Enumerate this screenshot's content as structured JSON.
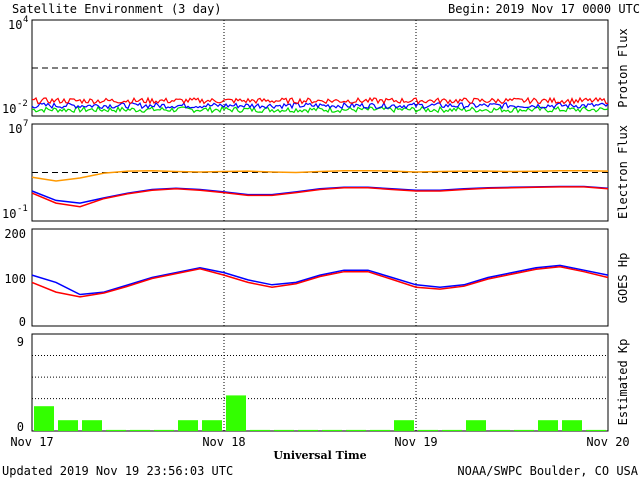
{
  "header": {
    "title": "Satellite Environment (3 day)",
    "begin_label": "Begin:",
    "begin_date": "2019 Nov 17 0000 UTC"
  },
  "footer": {
    "updated": "Updated 2019 Nov 19 23:56:03 UTC",
    "credit": "NOAA/SWPC Boulder, CO USA",
    "xlabel": "Universal Time"
  },
  "colors": {
    "red": "#ff0000",
    "blue": "#0000ff",
    "green": "#00dd00",
    "orange": "#ff9900",
    "kp_bar": "#33ff00"
  },
  "chart_data": [
    {
      "type": "line",
      "panel": "proton",
      "ylabel": "Proton Flux",
      "scale": "log",
      "ylim": [
        0.01,
        10000
      ],
      "ytick_labels": [
        {
          "base": "10",
          "exp": "4",
          "value": 10000
        },
        {
          "base": "10",
          "exp": "-2",
          "value": 0.01
        }
      ],
      "threshold": 10,
      "x_range_hours": [
        0,
        72
      ],
      "series": [
        {
          "color": "red",
          "level": 0.09
        },
        {
          "color": "blue",
          "level": 0.045
        },
        {
          "color": "green",
          "level": 0.025
        }
      ]
    },
    {
      "type": "line",
      "panel": "electron",
      "ylabel": "Electron Flux",
      "scale": "log",
      "ylim": [
        0.1,
        10000000
      ],
      "ytick_labels": [
        {
          "base": "10",
          "exp": "7",
          "value": 10000000
        },
        {
          "base": "10",
          "exp": "-1",
          "value": 0.1
        }
      ],
      "threshold": 1000,
      "x_hours": [
        0,
        3,
        6,
        9,
        12,
        15,
        18,
        21,
        24,
        27,
        30,
        33,
        36,
        39,
        42,
        45,
        48,
        51,
        54,
        57,
        60,
        63,
        66,
        69,
        72
      ],
      "series": [
        {
          "color": "orange",
          "values": [
            400,
            200,
            350,
            900,
            1300,
            1400,
            1200,
            1100,
            1200,
            1300,
            1100,
            1000,
            1200,
            1400,
            1400,
            1300,
            1100,
            1200,
            1300,
            1300,
            1200,
            1250,
            1400,
            1400,
            1300
          ]
        },
        {
          "color": "blue",
          "values": [
            30,
            5,
            3,
            8,
            20,
            40,
            50,
            40,
            25,
            15,
            15,
            25,
            45,
            60,
            60,
            45,
            35,
            35,
            45,
            55,
            60,
            65,
            70,
            70,
            50
          ]
        },
        {
          "color": "red",
          "values": [
            20,
            3,
            1.5,
            7,
            18,
            35,
            45,
            35,
            22,
            13,
            13,
            22,
            40,
            55,
            55,
            40,
            30,
            30,
            40,
            50,
            55,
            60,
            65,
            65,
            45
          ]
        }
      ]
    },
    {
      "type": "line",
      "panel": "goes_hp",
      "ylabel": "GOES Hp",
      "ylim": [
        0,
        200
      ],
      "yticks": [
        "200",
        "100",
        "0"
      ],
      "x_hours": [
        0,
        3,
        6,
        9,
        12,
        15,
        18,
        21,
        24,
        27,
        30,
        33,
        36,
        39,
        42,
        45,
        48,
        51,
        54,
        57,
        60,
        63,
        66,
        69,
        72
      ],
      "series": [
        {
          "color": "blue",
          "values": [
            105,
            90,
            65,
            70,
            85,
            100,
            110,
            120,
            110,
            95,
            85,
            90,
            105,
            115,
            115,
            100,
            85,
            80,
            85,
            100,
            110,
            120,
            125,
            115,
            105
          ]
        },
        {
          "color": "red",
          "values": [
            90,
            70,
            60,
            68,
            82,
            98,
            108,
            118,
            105,
            90,
            80,
            87,
            102,
            112,
            112,
            96,
            80,
            76,
            82,
            97,
            107,
            117,
            122,
            112,
            100
          ]
        }
      ]
    },
    {
      "type": "bar",
      "panel": "kp",
      "ylabel": "Estimated Kp",
      "ylim": [
        0,
        9
      ],
      "yticks": [
        "9",
        "0"
      ],
      "bar_hours": 3,
      "values": [
        2.3,
        1,
        1,
        0.1,
        0.1,
        0.1,
        1,
        1,
        3.3,
        0.1,
        0.1,
        0.1,
        0.1,
        0.1,
        0.1,
        1,
        0.1,
        0.1,
        1,
        0.1,
        0.1,
        1,
        1,
        0.1
      ]
    }
  ],
  "xaxis": {
    "tick_labels": [
      "Nov 17",
      "Nov 18",
      "Nov 19",
      "Nov 20"
    ],
    "tick_hours": [
      0,
      24,
      48,
      72
    ]
  }
}
